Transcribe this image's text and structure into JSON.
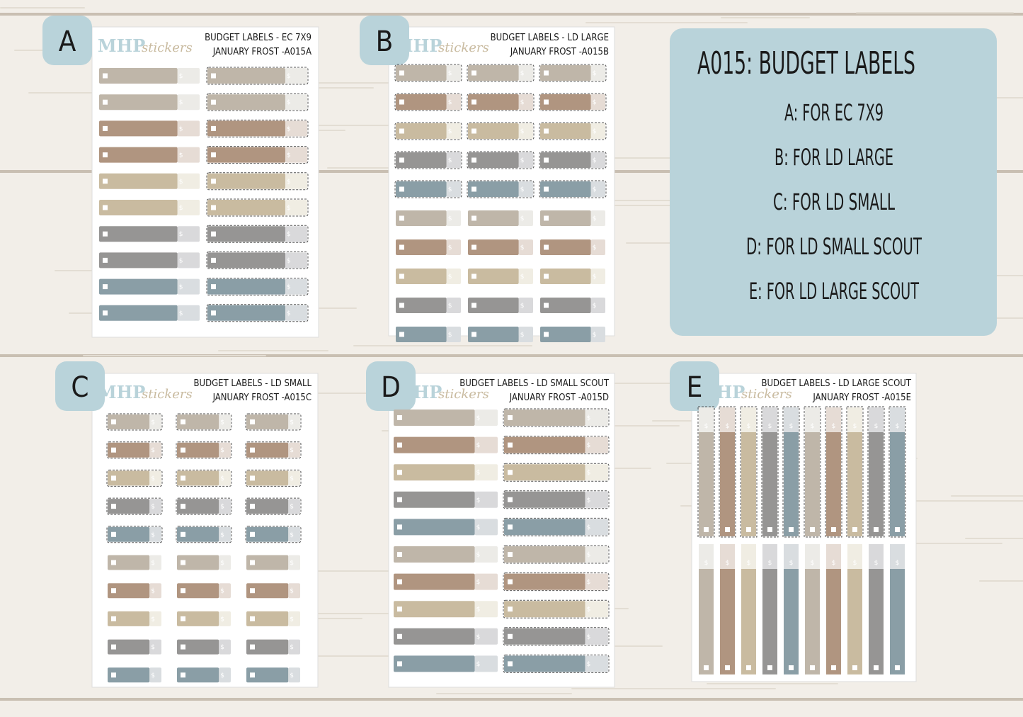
{
  "sheets": [
    {
      "letter": "A",
      "logo": {
        "brand": "MHP",
        "suffix": "stickers"
      },
      "title": "BUDGET LABELS - EC 7X9",
      "subtitle": "JANUARY FROST -A015A"
    },
    {
      "letter": "B",
      "logo": {
        "brand": "MHP",
        "suffix": "stickers"
      },
      "title": "BUDGET LABELS - LD LARGE",
      "subtitle": "JANUARY FROST -A015B"
    },
    {
      "letter": "C",
      "logo": {
        "brand": "MHP",
        "suffix": "stickers"
      },
      "title": "BUDGET LABELS - LD SMALL",
      "subtitle": "JANUARY FROST -A015C"
    },
    {
      "letter": "D",
      "logo": {
        "brand": "MHP",
        "suffix": "stickers"
      },
      "title": "BUDGET LABELS - LD SMALL SCOUT",
      "subtitle": "JANUARY FROST -A015D"
    },
    {
      "letter": "E",
      "logo": {
        "brand": "MHP",
        "suffix": "stickers"
      },
      "title": "BUDGET LABELS - LD LARGE SCOUT",
      "subtitle": "JANUARY FROST -A015E"
    }
  ],
  "sticker_symbol": "$",
  "info": {
    "title": "A015: BUDGET LABELS",
    "lines": [
      "A: FOR EC 7X9",
      "B: FOR LD LARGE",
      "C: FOR LD SMALL",
      "D: FOR LD SMALL SCOUT",
      "E: FOR LD LARGE SCOUT"
    ]
  }
}
